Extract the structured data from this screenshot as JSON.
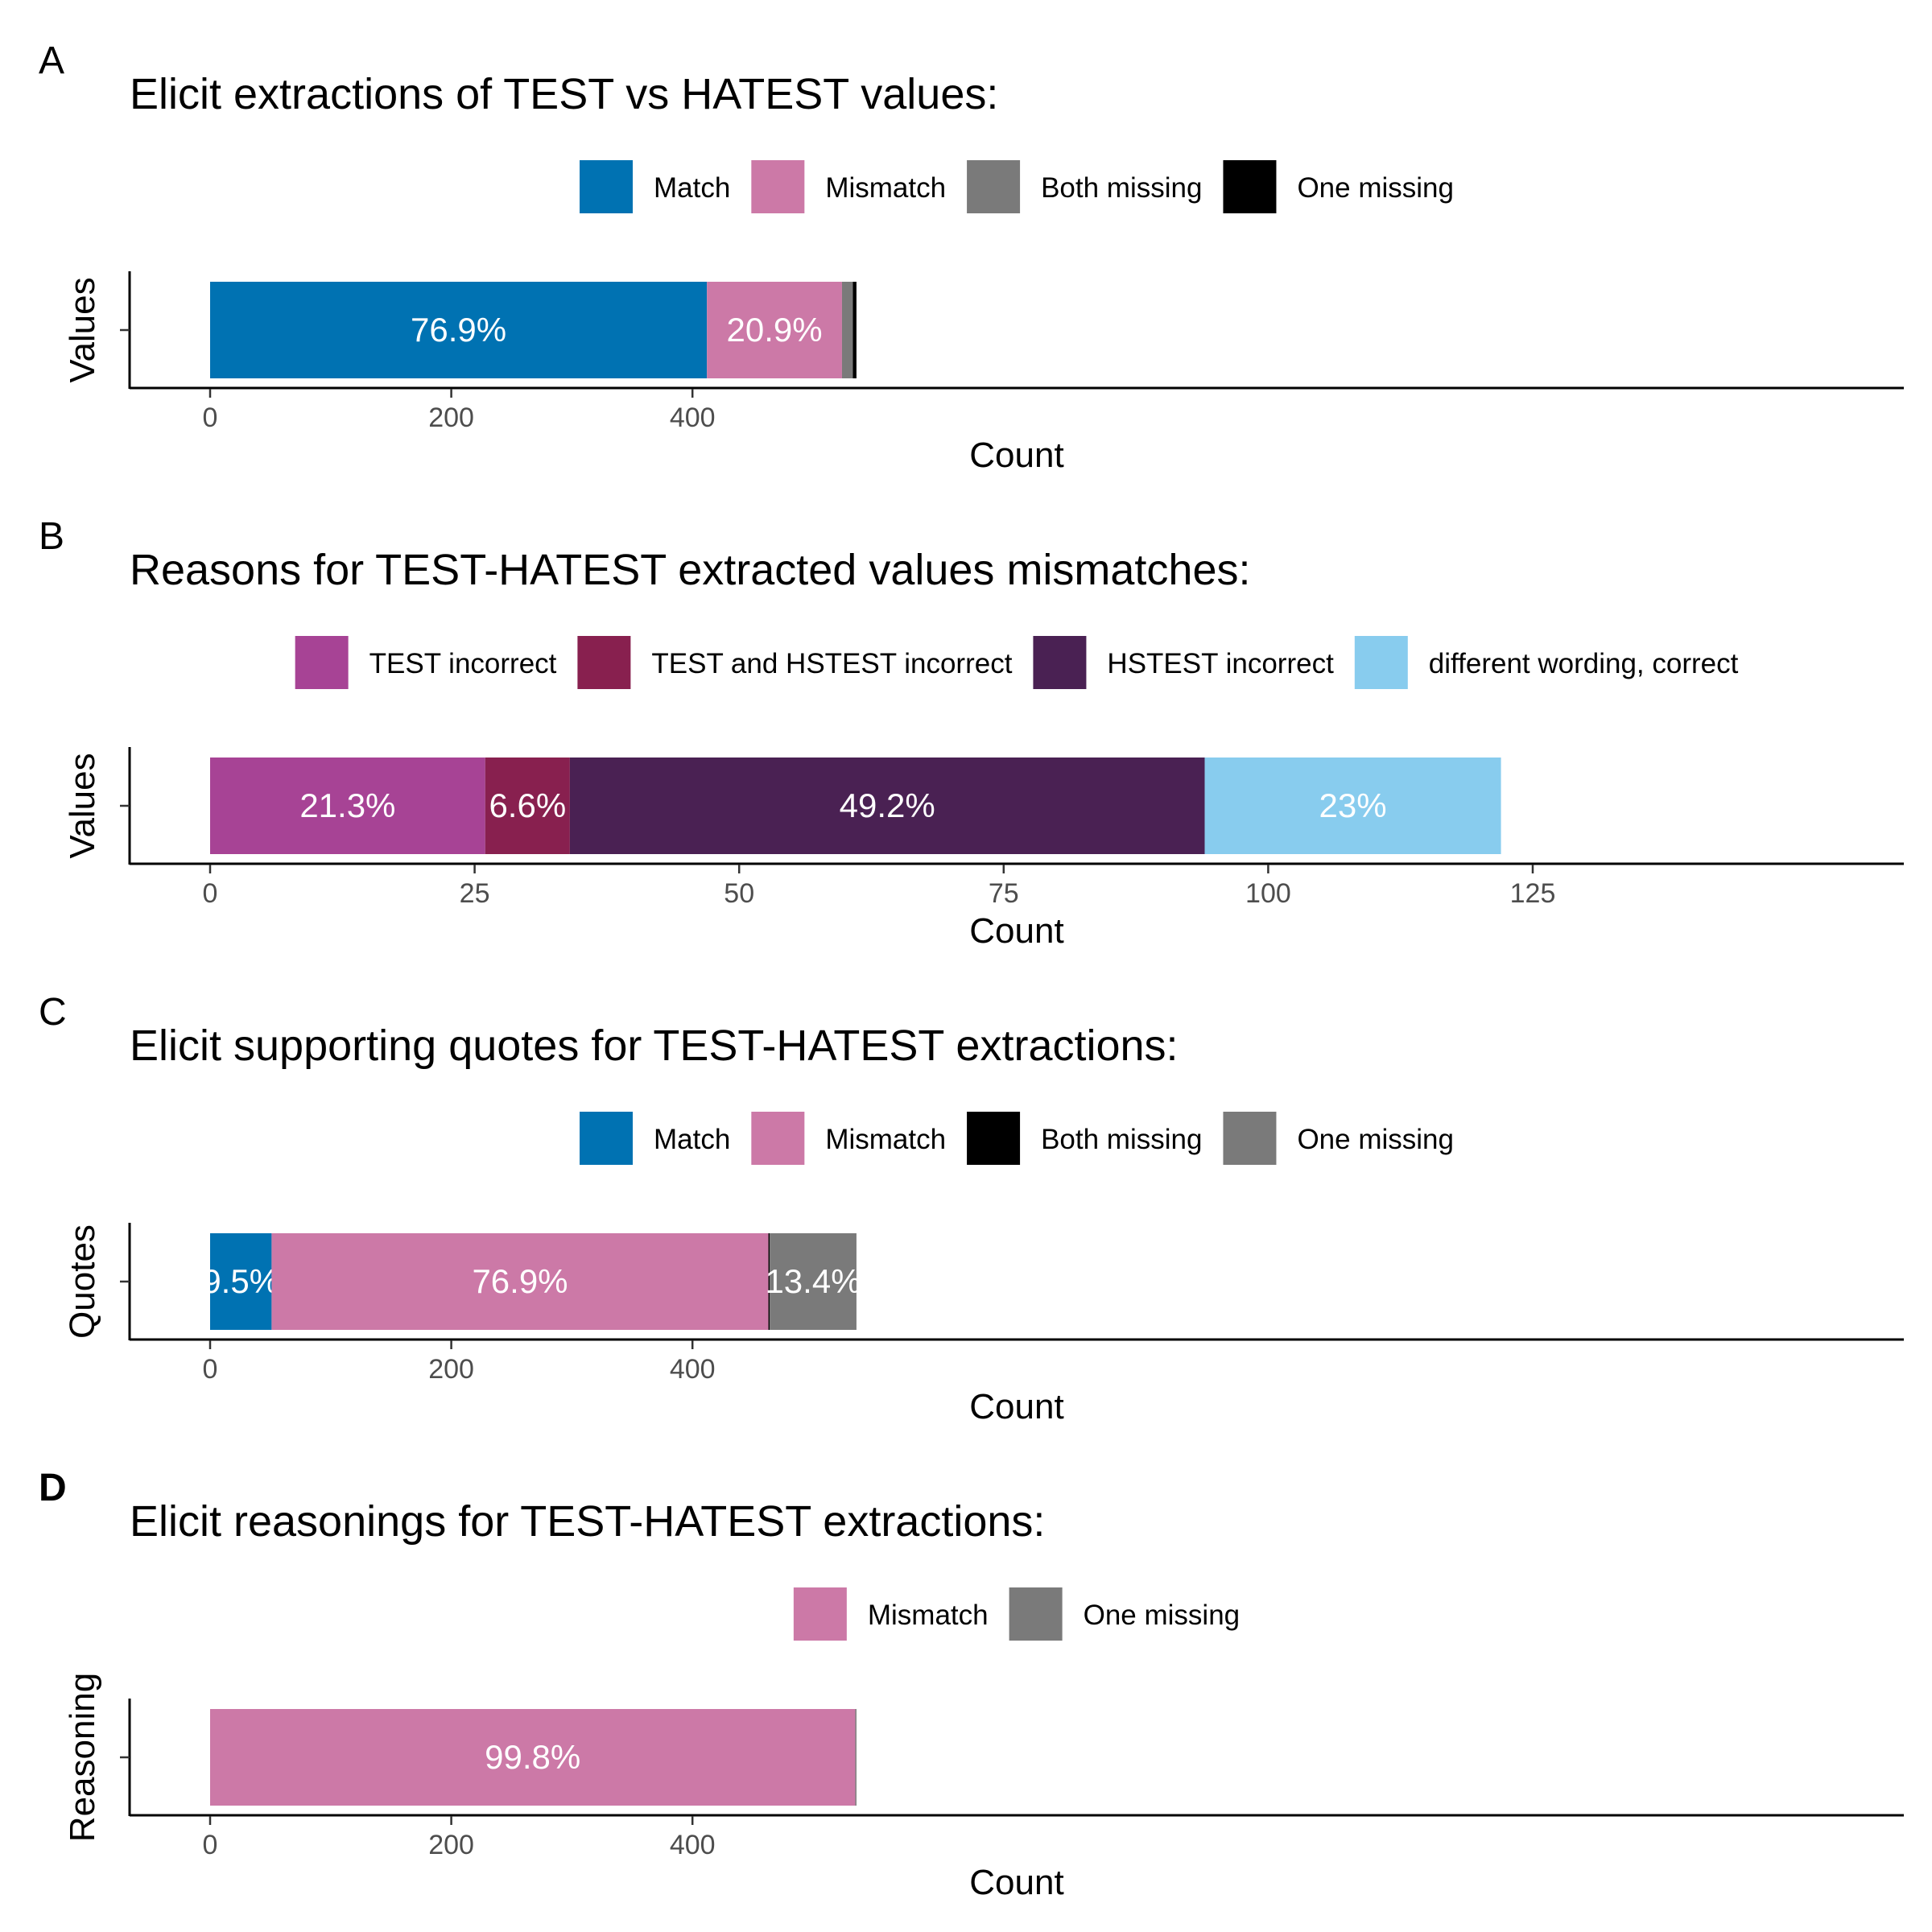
{
  "chart_data": [
    {
      "type": "bar",
      "orientation": "horizontal",
      "stacked": true,
      "panel": "A",
      "title": "Elicit extractions of TEST vs HATEST values:",
      "xlabel": "Count",
      "ylabel": "Values",
      "categories": [
        "Values"
      ],
      "xlim": [
        0,
        540
      ],
      "xticks": [
        0,
        200,
        400
      ],
      "grid": false,
      "legend_position": "top",
      "series": [
        {
          "name": "Match",
          "values": [
            412
          ],
          "label": "76.9%",
          "color": "#0072B2"
        },
        {
          "name": "Mismatch",
          "values": [
            112
          ],
          "label": "20.9%",
          "color": "#CC79A7"
        },
        {
          "name": "Both missing",
          "values": [
            9
          ],
          "label": "",
          "color": "#7A7A7A"
        },
        {
          "name": "One missing",
          "values": [
            3
          ],
          "label": "",
          "color": "#000000"
        }
      ]
    },
    {
      "type": "bar",
      "orientation": "horizontal",
      "stacked": true,
      "panel": "B",
      "title": "Reasons for TEST-HATEST extracted values mismatches:",
      "xlabel": "Count",
      "ylabel": "Values",
      "categories": [
        "Values"
      ],
      "xlim": [
        0,
        125
      ],
      "xticks": [
        0,
        25,
        50,
        75,
        100,
        125
      ],
      "grid": false,
      "legend_position": "top",
      "series": [
        {
          "name": "TEST incorrect",
          "values": [
            26
          ],
          "label": "21.3%",
          "color": "#A74395"
        },
        {
          "name": "TEST and HSTEST incorrect",
          "values": [
            8
          ],
          "label": "6.6%",
          "color": "#88204F"
        },
        {
          "name": "HSTEST incorrect",
          "values": [
            60
          ],
          "label": "49.2%",
          "color": "#4A2153"
        },
        {
          "name": "different wording, correct",
          "values": [
            28
          ],
          "label": "23%",
          "color": "#88CCEE"
        }
      ]
    },
    {
      "type": "bar",
      "orientation": "horizontal",
      "stacked": true,
      "panel": "C",
      "title": "Elicit supporting quotes for TEST-HATEST extractions:",
      "xlabel": "Count",
      "ylabel": "Quotes",
      "categories": [
        "Quotes"
      ],
      "xlim": [
        0,
        540
      ],
      "xticks": [
        0,
        200,
        400
      ],
      "grid": false,
      "legend_position": "top",
      "series": [
        {
          "name": "Match",
          "values": [
            51
          ],
          "label": "9.5%",
          "color": "#0072B2"
        },
        {
          "name": "Mismatch",
          "values": [
            412
          ],
          "label": "76.9%",
          "color": "#CC79A7"
        },
        {
          "name": "Both missing",
          "values": [
            1
          ],
          "label": "",
          "color": "#000000"
        },
        {
          "name": "One missing",
          "values": [
            72
          ],
          "label": "13.4%",
          "color": "#7A7A7A"
        }
      ]
    },
    {
      "type": "bar",
      "orientation": "horizontal",
      "stacked": true,
      "panel": "D",
      "title": "Elicit reasonings for TEST-HATEST extractions:",
      "xlabel": "Count",
      "ylabel": "Reasoning",
      "categories": [
        "Reasoning"
      ],
      "xlim": [
        0,
        540
      ],
      "xticks": [
        0,
        200,
        400
      ],
      "grid": false,
      "legend_position": "top",
      "series": [
        {
          "name": "Mismatch",
          "values": [
            535
          ],
          "label": "99.8%",
          "color": "#CC79A7"
        },
        {
          "name": "One missing",
          "values": [
            1
          ],
          "label": "",
          "color": "#7A7A7A"
        }
      ]
    }
  ]
}
